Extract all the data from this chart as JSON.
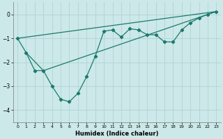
{
  "xlabel": "Humidex (Indice chaleur)",
  "bg_color": "#cce8e8",
  "line_color": "#1a7a6e",
  "xlim": [
    -0.5,
    23.5
  ],
  "ylim": [
    -4.5,
    0.5
  ],
  "xticks": [
    0,
    1,
    2,
    3,
    4,
    5,
    6,
    7,
    8,
    9,
    10,
    11,
    12,
    13,
    14,
    15,
    16,
    17,
    18,
    19,
    20,
    21,
    22,
    23
  ],
  "yticks": [
    0,
    -1,
    -2,
    -3,
    -4
  ],
  "series_main_x": [
    0,
    1,
    2,
    3,
    4,
    5,
    6,
    7,
    8,
    9,
    10,
    11,
    12,
    13,
    14,
    15,
    16,
    17,
    18,
    19,
    20,
    21,
    22,
    23
  ],
  "series_main_y": [
    -1.0,
    -1.6,
    -2.35,
    -2.35,
    -3.0,
    -3.55,
    -3.65,
    -3.3,
    -2.6,
    -1.75,
    -0.7,
    -0.65,
    -0.95,
    -0.6,
    -0.65,
    -0.85,
    -0.85,
    -1.15,
    -1.15,
    -0.65,
    -0.35,
    -0.15,
    0.0,
    0.12
  ],
  "series_line1_x": [
    0,
    23
  ],
  "series_line1_y": [
    -1.0,
    0.12
  ],
  "series_line2_x": [
    1,
    3,
    23
  ],
  "series_line2_y": [
    -1.6,
    -2.35,
    0.12
  ]
}
